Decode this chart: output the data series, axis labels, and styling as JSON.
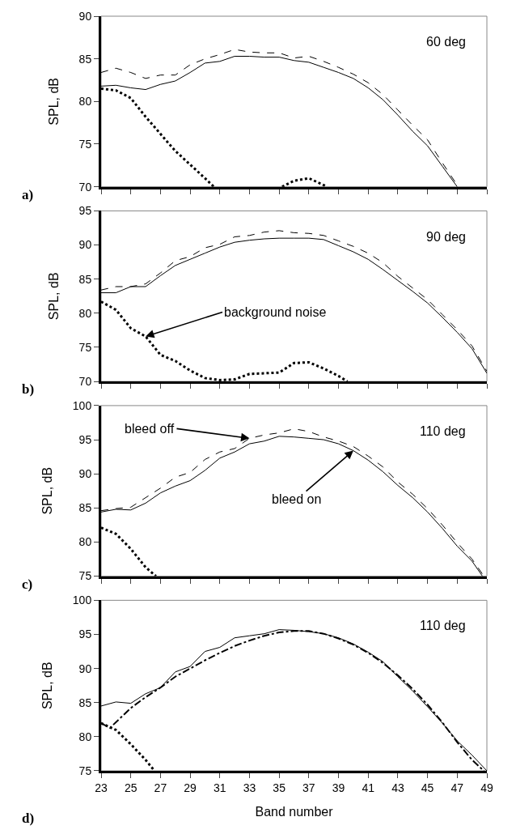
{
  "chart_data": [
    {
      "type": "line",
      "ylabel": "SPL, dB",
      "xlim": [
        23,
        49
      ],
      "xticks": [
        23,
        25,
        27,
        29,
        31,
        33,
        35,
        37,
        39,
        41,
        43,
        45,
        47,
        49
      ],
      "ylim": [
        70,
        90
      ],
      "yticks": [
        70,
        75,
        80,
        85,
        90
      ],
      "tick_labels": "y",
      "grid": false,
      "marker": "none",
      "annotations": [
        "60 deg",
        "a)"
      ],
      "series": [
        {
          "color": "#000000",
          "line_style": "solid",
          "x": [
            23,
            24,
            25,
            26,
            27,
            28,
            29,
            30,
            31,
            32,
            33,
            34,
            35,
            36,
            37,
            38,
            39,
            40,
            41,
            42,
            43,
            44,
            45,
            46,
            47
          ],
          "values": [
            81.8,
            81.9,
            81.6,
            81.4,
            82.0,
            82.4,
            83.4,
            84.5,
            84.7,
            85.3,
            85.3,
            85.2,
            85.2,
            84.8,
            84.6,
            84.0,
            83.4,
            82.7,
            81.6,
            80.2,
            78.4,
            76.5,
            74.8,
            72.4,
            70.0
          ]
        },
        {
          "color": "#000000",
          "line_style": "dashed",
          "x": [
            23,
            24,
            25,
            26,
            27,
            28,
            29,
            30,
            31,
            32,
            33,
            34,
            35,
            36,
            37,
            38,
            39,
            40,
            41,
            42,
            43,
            44,
            45,
            46,
            47
          ],
          "values": [
            83.4,
            83.9,
            83.4,
            82.7,
            83.1,
            83.1,
            84.3,
            85.0,
            85.5,
            86.1,
            85.8,
            85.7,
            85.7,
            85.1,
            85.3,
            84.7,
            84.0,
            83.2,
            82.2,
            80.8,
            79.0,
            77.2,
            75.5,
            72.8,
            70.2
          ]
        },
        {
          "color": "#000000",
          "line_style": "dotted",
          "x": [
            23,
            24,
            25,
            26,
            27,
            28,
            29,
            30,
            30.6,
            31,
            35,
            35.2,
            36,
            37,
            38,
            38.2
          ],
          "values": [
            81.5,
            81.3,
            80.4,
            78.2,
            76.2,
            74.2,
            72.6,
            71.0,
            70.0,
            null,
            null,
            70.0,
            70.7,
            71.0,
            70.2,
            70.0
          ]
        }
      ]
    },
    {
      "type": "line",
      "ylabel": "SPL, dB",
      "xlim": [
        23,
        49
      ],
      "xticks": [
        23,
        25,
        27,
        29,
        31,
        33,
        35,
        37,
        39,
        41,
        43,
        45,
        47,
        49
      ],
      "ylim": [
        70,
        95
      ],
      "yticks": [
        70,
        75,
        80,
        85,
        90,
        95
      ],
      "tick_labels": "y",
      "grid": false,
      "marker": "none",
      "annotations": [
        "90 deg",
        "b)",
        {
          "text": "background noise",
          "x": 26,
          "y": 76.6
        }
      ],
      "series": [
        {
          "color": "#000000",
          "line_style": "solid",
          "x": [
            23,
            24,
            25,
            26,
            27,
            28,
            29,
            30,
            31,
            32,
            33,
            34,
            35,
            36,
            37,
            38,
            39,
            40,
            41,
            42,
            43,
            44,
            45,
            46,
            47,
            48,
            49
          ],
          "values": [
            83.0,
            83.0,
            83.9,
            83.9,
            85.5,
            87.0,
            87.9,
            88.8,
            89.7,
            90.4,
            90.7,
            90.9,
            91.0,
            91.0,
            91.0,
            90.8,
            89.9,
            89.0,
            87.9,
            86.4,
            84.8,
            83.2,
            81.5,
            79.4,
            77.2,
            74.8,
            71.2
          ]
        },
        {
          "color": "#000000",
          "line_style": "dashed",
          "x": [
            23,
            24,
            25,
            26,
            27,
            28,
            29,
            30,
            31,
            32,
            33,
            34,
            35,
            36,
            37,
            38,
            39,
            40,
            41,
            42,
            43,
            44,
            45,
            46,
            47,
            48,
            49
          ],
          "values": [
            83.4,
            83.9,
            83.9,
            84.3,
            85.9,
            87.7,
            88.3,
            89.6,
            90.1,
            91.2,
            91.4,
            91.9,
            92.1,
            91.8,
            91.7,
            91.4,
            90.6,
            89.8,
            88.8,
            87.4,
            85.4,
            83.7,
            82.0,
            79.8,
            77.6,
            75.2,
            71.5
          ]
        },
        {
          "color": "#000000",
          "line_style": "dotted",
          "x": [
            23,
            24,
            25,
            26,
            27,
            28,
            29,
            30,
            31,
            32,
            33,
            34,
            35,
            36,
            37,
            38,
            39,
            39.6
          ],
          "values": [
            81.7,
            80.5,
            77.8,
            76.6,
            73.9,
            73.0,
            71.6,
            70.5,
            70.2,
            70.3,
            71.1,
            71.2,
            71.3,
            72.7,
            72.8,
            71.9,
            70.8,
            70.0
          ]
        }
      ]
    },
    {
      "type": "line",
      "ylabel": "SPL, dB",
      "xlim": [
        23,
        49
      ],
      "xticks": [
        23,
        25,
        27,
        29,
        31,
        33,
        35,
        37,
        39,
        41,
        43,
        45,
        47,
        49
      ],
      "ylim": [
        75,
        100
      ],
      "yticks": [
        75,
        80,
        85,
        90,
        95,
        100
      ],
      "tick_labels": "y",
      "grid": false,
      "marker": "none",
      "annotations": [
        "110 deg",
        "c)",
        {
          "text": "bleed off",
          "x": 33,
          "y": 95.2
        },
        {
          "text": "bleed on",
          "x": 40,
          "y": 93.4
        }
      ],
      "series": [
        {
          "color": "#000000",
          "line_style": "solid",
          "x": [
            23,
            24,
            25,
            26,
            27,
            28,
            29,
            30,
            31,
            32,
            33,
            34,
            35,
            36,
            37,
            38,
            39,
            40,
            41,
            42,
            43,
            44,
            45,
            46,
            47,
            48,
            48.7
          ],
          "values": [
            84.4,
            84.8,
            84.7,
            85.7,
            87.2,
            88.2,
            89.0,
            90.5,
            92.3,
            93.2,
            94.4,
            94.8,
            95.5,
            95.4,
            95.2,
            95.0,
            94.4,
            93.4,
            92.0,
            90.3,
            88.3,
            86.5,
            84.4,
            82.0,
            79.4,
            77.2,
            75.0
          ]
        },
        {
          "color": "#000000",
          "line_style": "dashed",
          "x": [
            23,
            24,
            25,
            26,
            27,
            28,
            29,
            30,
            31,
            32,
            33,
            34,
            35,
            36,
            37,
            38,
            39,
            40,
            41,
            42,
            43,
            44,
            45,
            46,
            47,
            48,
            48.8
          ],
          "values": [
            84.6,
            84.9,
            85.1,
            86.5,
            87.9,
            89.5,
            90.2,
            92.1,
            93.2,
            93.7,
            95.2,
            95.7,
            96.0,
            96.6,
            96.2,
            95.4,
            94.8,
            94.0,
            92.6,
            91.0,
            88.8,
            87.0,
            84.9,
            82.5,
            79.9,
            77.5,
            75.0
          ]
        },
        {
          "color": "#000000",
          "line_style": "dotted",
          "x": [
            23,
            24,
            25,
            26,
            26.7
          ],
          "values": [
            82.1,
            81.2,
            79.0,
            76.3,
            75.0
          ]
        }
      ]
    },
    {
      "type": "line",
      "xlabel": "Band number",
      "ylabel": "SPL, dB",
      "xlim": [
        23,
        49
      ],
      "xticks": [
        23,
        25,
        27,
        29,
        31,
        33,
        35,
        37,
        39,
        41,
        43,
        45,
        47,
        49
      ],
      "ylim": [
        75,
        100
      ],
      "yticks": [
        75,
        80,
        85,
        90,
        95,
        100
      ],
      "grid": false,
      "marker": "none",
      "annotations": [
        "110 deg",
        "d)"
      ],
      "series": [
        {
          "color": "#000000",
          "line_style": "solid",
          "x": [
            23,
            24,
            25,
            26,
            27,
            28,
            29,
            30,
            31,
            32,
            33,
            34,
            35,
            36,
            37,
            38,
            39,
            40,
            41,
            42,
            43,
            44,
            45,
            46,
            47,
            48,
            49
          ],
          "values": [
            84.5,
            85.1,
            84.9,
            86.3,
            87.2,
            89.5,
            90.3,
            92.5,
            93.1,
            94.5,
            94.8,
            95.1,
            95.7,
            95.6,
            95.4,
            95.1,
            94.5,
            93.6,
            92.4,
            91.0,
            88.8,
            86.7,
            84.4,
            82.0,
            79.4,
            77.3,
            75.0
          ]
        },
        {
          "color": "#000000",
          "line_style": "dashdot",
          "x": [
            23,
            23.6,
            25,
            26,
            27,
            28,
            29,
            30,
            31,
            32,
            33,
            34,
            35,
            36,
            37,
            38,
            39,
            40,
            41,
            42,
            43,
            44,
            45,
            46,
            47,
            48,
            48.8
          ],
          "values": [
            82.0,
            81.3,
            84.2,
            85.8,
            87.2,
            88.8,
            90.0,
            91.2,
            92.3,
            93.3,
            94.1,
            94.8,
            95.3,
            95.5,
            95.5,
            95.1,
            94.4,
            93.5,
            92.3,
            90.8,
            89.0,
            87.0,
            84.7,
            82.1,
            79.2,
            76.6,
            75.0
          ]
        },
        {
          "color": "#000000",
          "line_style": "dotted",
          "x": [
            23,
            24,
            25,
            26,
            26.6
          ],
          "values": [
            82.0,
            81.0,
            78.9,
            76.6,
            75.0
          ]
        }
      ]
    }
  ]
}
